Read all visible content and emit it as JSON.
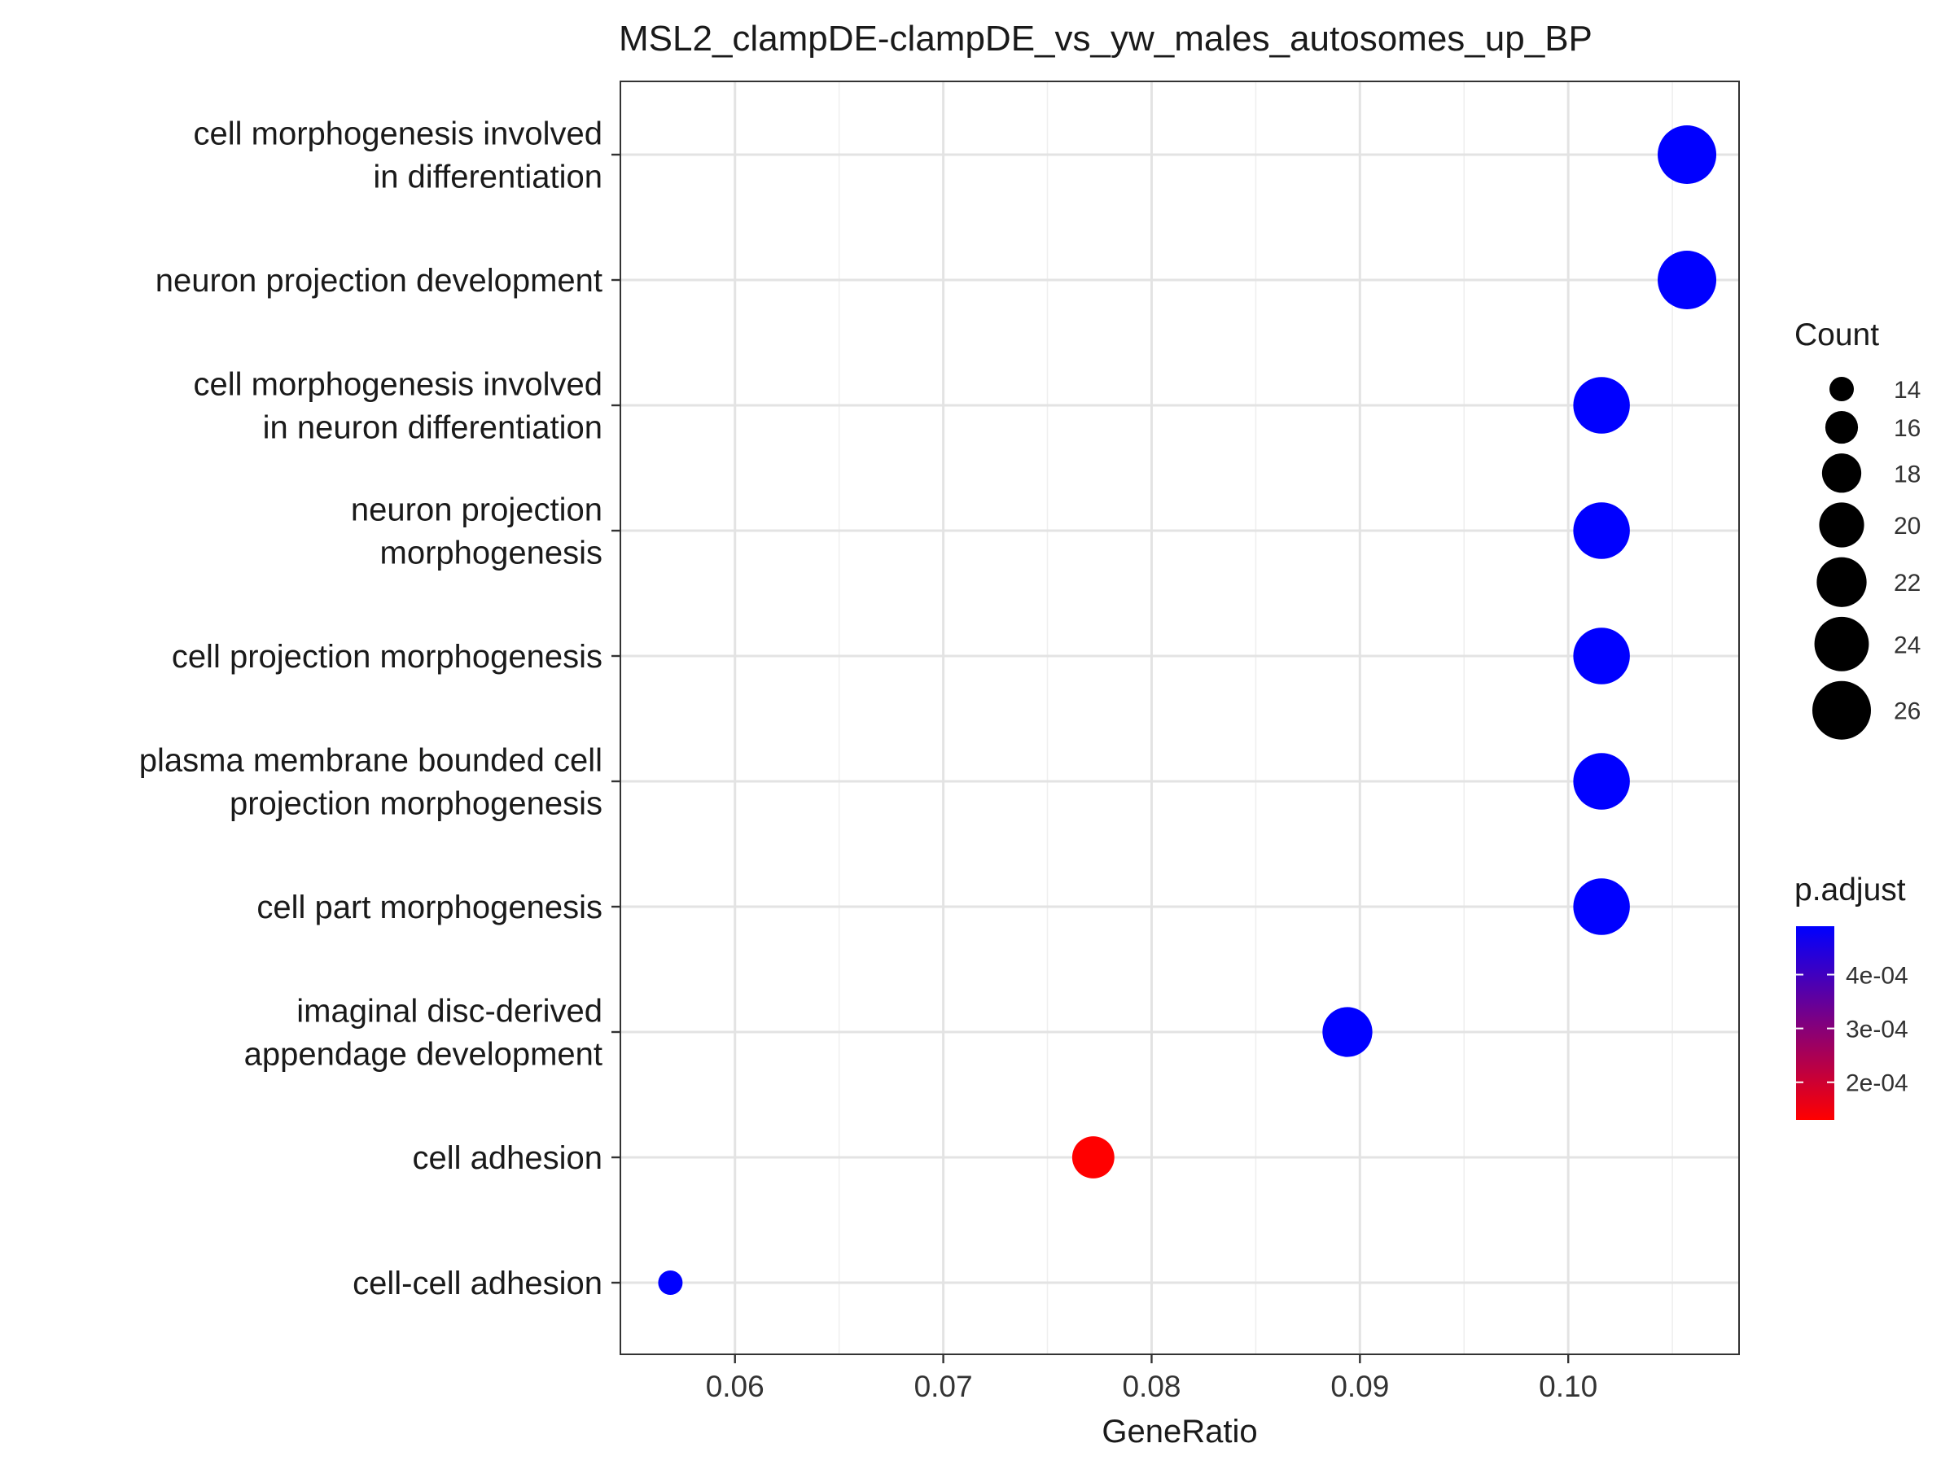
{
  "chart_data": {
    "type": "scatter",
    "title": "MSL2_clampDE-clampDE_vs_yw_males_autosomes_up_BP",
    "xlabel": "GeneRatio",
    "ylabel": "",
    "xlim": [
      0.0545,
      0.1082
    ],
    "x_ticks": [
      0.06,
      0.07,
      0.08,
      0.09,
      0.1
    ],
    "x_tick_labels": [
      "0.06",
      "0.07",
      "0.08",
      "0.09",
      "0.10"
    ],
    "grid": true,
    "categories": [
      [
        "cell morphogenesis involved",
        "in differentiation"
      ],
      [
        "neuron projection development"
      ],
      [
        "cell morphogenesis involved",
        "in neuron differentiation"
      ],
      [
        "neuron projection",
        "morphogenesis"
      ],
      [
        "cell projection morphogenesis"
      ],
      [
        "plasma membrane bounded cell",
        "projection morphogenesis"
      ],
      [
        "cell part morphogenesis"
      ],
      [
        "imaginal disc-derived",
        "appendage development"
      ],
      [
        "cell adhesion"
      ],
      [
        "cell-cell adhesion"
      ]
    ],
    "points": [
      {
        "x": 0.1057,
        "count": 26,
        "p_adjust": 0.00049
      },
      {
        "x": 0.1057,
        "count": 26,
        "p_adjust": 0.00049
      },
      {
        "x": 0.1016,
        "count": 25,
        "p_adjust": 0.00049
      },
      {
        "x": 0.1016,
        "count": 25,
        "p_adjust": 0.00049
      },
      {
        "x": 0.1016,
        "count": 25,
        "p_adjust": 0.00049
      },
      {
        "x": 0.1016,
        "count": 25,
        "p_adjust": 0.00049
      },
      {
        "x": 0.1016,
        "count": 25,
        "p_adjust": 0.00049
      },
      {
        "x": 0.0894,
        "count": 22,
        "p_adjust": 0.00049
      },
      {
        "x": 0.0772,
        "count": 19,
        "p_adjust": 0.00013
      },
      {
        "x": 0.0569,
        "count": 14,
        "p_adjust": 0.00049
      }
    ],
    "size_legend": {
      "title": "Count",
      "values": [
        14,
        16,
        18,
        20,
        22,
        24,
        26
      ],
      "labels": [
        "14",
        "16",
        "18",
        "20",
        "22",
        "24",
        "26"
      ]
    },
    "color_legend": {
      "title": "p.adjust",
      "low_color": "#ff0000",
      "high_color": "#0000ff",
      "range": [
        0.00013,
        0.00049
      ],
      "ticks": [
        0.0004,
        0.0003,
        0.0002
      ],
      "tick_labels": [
        "4e-04",
        "3e-04",
        "2e-04"
      ]
    },
    "legend_position": "right"
  }
}
